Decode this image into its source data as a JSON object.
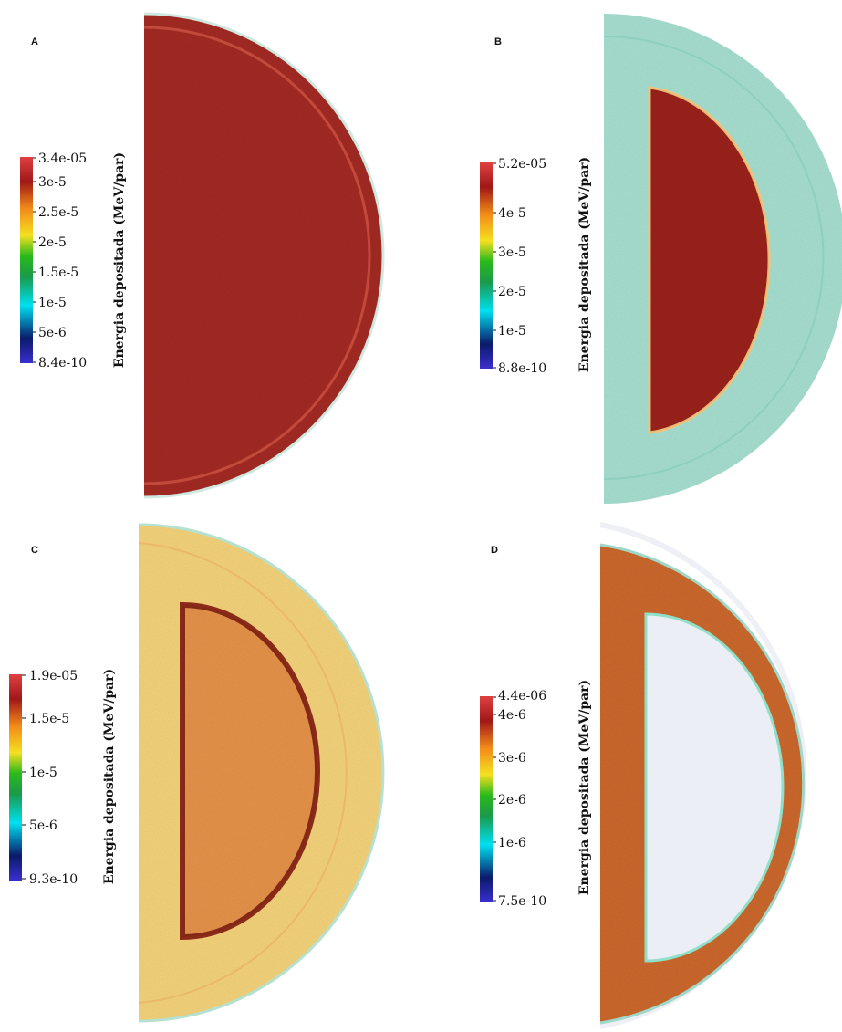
{
  "panels": [
    {
      "label": "A",
      "colorbar_title": "Energia depositada (MeV/par)",
      "ticks": [
        "3.4e-05",
        "3e-5",
        "2.5e-5",
        "2e-5",
        "1.5e-5",
        "1e-5",
        "5e-6",
        "8.4e-10"
      ]
    },
    {
      "label": "B",
      "colorbar_title": "Energia depositada (MeV/par)",
      "ticks": [
        "5.2e-05",
        "4e-5",
        "3e-5",
        "2e-5",
        "1e-5",
        "8.8e-10"
      ]
    },
    {
      "label": "C",
      "colorbar_title": "Energia depositada (MeV/par)",
      "ticks": [
        "1.9e-05",
        "1.5e-5",
        "1e-5",
        "5e-6",
        "9.3e-10"
      ]
    },
    {
      "label": "D",
      "colorbar_title": "Energia depositada (MeV/par)",
      "ticks": [
        "4.4e-06",
        "4e-6",
        "3e-6",
        "2e-6",
        "1e-6",
        "7.5e-10"
      ]
    }
  ],
  "colors": {
    "dark_red": "#8b1a16",
    "red": "#a52a24",
    "orange": "#e08a3a",
    "yellow": "#f2dc7a",
    "cyan_tint": "#9fe0cf",
    "pale": "#eeeff7"
  }
}
